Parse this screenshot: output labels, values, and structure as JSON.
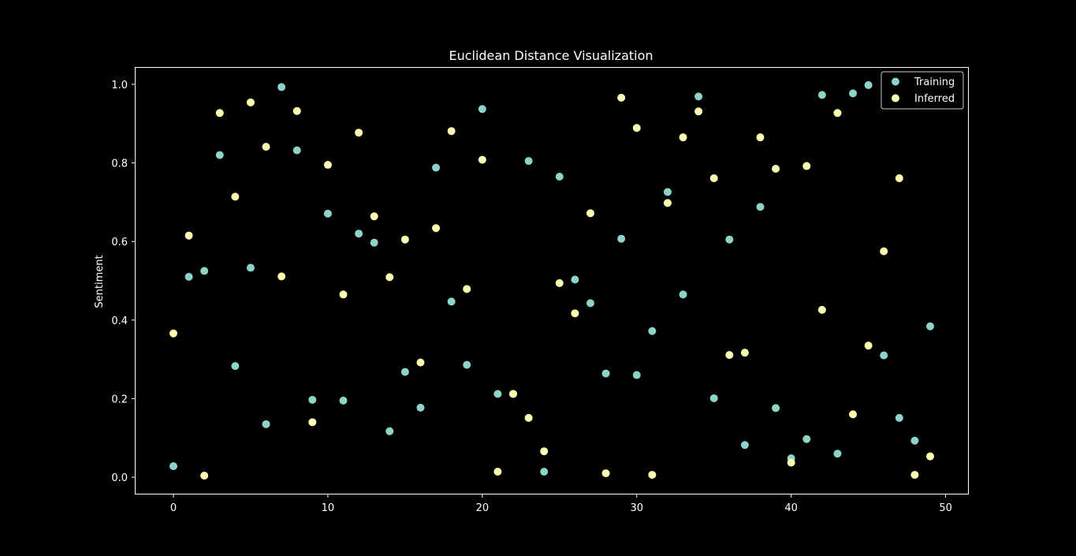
{
  "chart_data": {
    "type": "scatter",
    "title": "Euclidean Distance Visualization",
    "xlabel": "",
    "ylabel": "Sentiment",
    "xlim": [
      -2.45,
      51.45
    ],
    "ylim": [
      -0.042,
      1.042
    ],
    "xticks": [
      0,
      10,
      20,
      30,
      40,
      50
    ],
    "xtick_labels": [
      "0",
      "10",
      "20",
      "30",
      "40",
      "50"
    ],
    "yticks": [
      0.0,
      0.2,
      0.4,
      0.6,
      0.8,
      1.0
    ],
    "ytick_labels": [
      "0.0",
      "0.2",
      "0.4",
      "0.6",
      "0.8",
      "1.0"
    ],
    "grid": false,
    "legend_position": "top-right",
    "background": "#000000",
    "axes_color": "#ffffff",
    "x": [
      0,
      1,
      2,
      3,
      4,
      5,
      6,
      7,
      8,
      9,
      10,
      11,
      12,
      13,
      14,
      15,
      16,
      17,
      18,
      19,
      20,
      21,
      22,
      23,
      24,
      25,
      26,
      27,
      28,
      29,
      30,
      31,
      32,
      33,
      34,
      35,
      36,
      37,
      38,
      39,
      40,
      41,
      42,
      43,
      44,
      45,
      46,
      47,
      48,
      49
    ],
    "series": [
      {
        "name": "Training",
        "color": "#8dd3c7",
        "values": [
          0.028,
          0.51,
          0.525,
          0.82,
          0.283,
          0.533,
          0.135,
          0.993,
          0.832,
          0.197,
          0.671,
          0.195,
          0.62,
          0.597,
          0.117,
          0.268,
          0.177,
          0.788,
          0.447,
          0.286,
          0.937,
          0.212,
          0.212,
          0.805,
          0.014,
          0.765,
          0.503,
          0.443,
          0.264,
          0.607,
          0.26,
          0.372,
          0.726,
          0.465,
          0.969,
          0.201,
          0.605,
          0.082,
          0.688,
          0.176,
          0.048,
          0.097,
          0.973,
          0.06,
          0.977,
          0.998,
          0.31,
          0.151,
          0.093,
          0.384
        ]
      },
      {
        "name": "Inferred",
        "color": "#ffffb3",
        "values": [
          0.366,
          0.615,
          0.004,
          0.927,
          0.714,
          0.954,
          0.841,
          0.511,
          0.932,
          0.14,
          0.795,
          0.465,
          0.877,
          0.664,
          0.509,
          0.605,
          0.292,
          0.634,
          0.881,
          0.479,
          0.808,
          0.014,
          0.212,
          0.151,
          0.066,
          0.494,
          0.417,
          0.672,
          0.01,
          0.966,
          0.889,
          0.006,
          0.698,
          0.865,
          0.931,
          0.761,
          0.311,
          0.317,
          0.865,
          0.785,
          0.037,
          0.792,
          0.426,
          0.927,
          0.16,
          0.335,
          0.575,
          0.761,
          0.006,
          0.053
        ]
      }
    ]
  }
}
